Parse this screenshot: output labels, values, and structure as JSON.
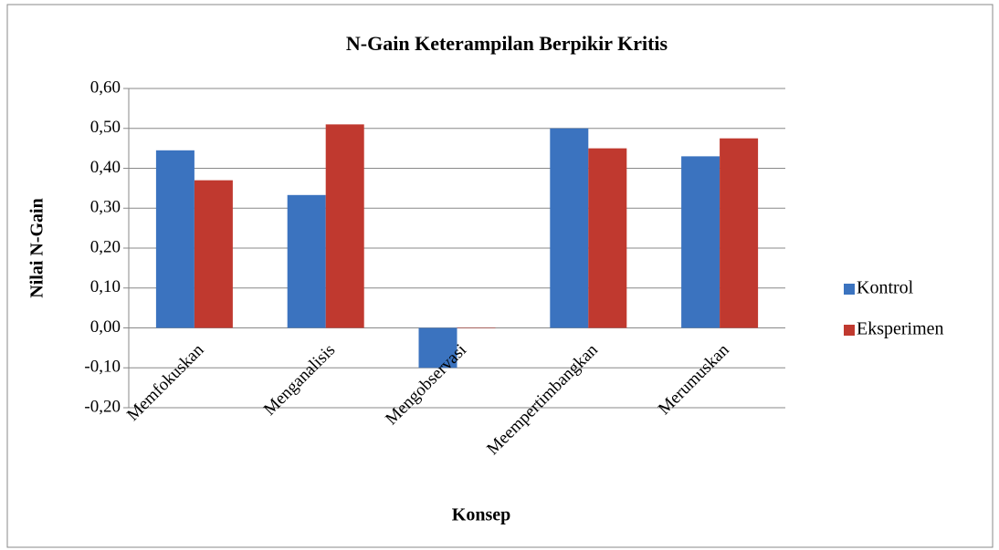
{
  "chart_data": {
    "type": "bar",
    "title": "N-Gain Keterampilan Berpikir Kritis",
    "x_label": "Konsep",
    "y_label": "Nilai N-Gain",
    "categories": [
      "Memfokuskan",
      "Menganalisis",
      "Mengobservasi",
      "Meempertimbangkan",
      "Merumuskan"
    ],
    "series": [
      {
        "name": "Kontrol",
        "color": "#3b73bf",
        "values": [
          0.445,
          0.333,
          -0.1,
          0.5,
          0.43
        ]
      },
      {
        "name": "Eksperimen",
        "color": "#c0392f",
        "values": [
          0.37,
          0.51,
          0.0,
          0.45,
          0.475
        ]
      }
    ],
    "ylim": [
      -0.2,
      0.6
    ],
    "yticks": [
      {
        "value": -0.2,
        "label": "-0,20"
      },
      {
        "value": -0.1,
        "label": "-0,10"
      },
      {
        "value": 0,
        "label": "0,00"
      },
      {
        "value": 0.1,
        "label": "0,10"
      },
      {
        "value": 0.2,
        "label": "0,20"
      },
      {
        "value": 0.3,
        "label": "0,30"
      },
      {
        "value": 0.4,
        "label": "0,40"
      },
      {
        "value": 0.5,
        "label": "0,50"
      },
      {
        "value": 0.6,
        "label": "0,60"
      }
    ],
    "grid": true,
    "legend": "right"
  }
}
